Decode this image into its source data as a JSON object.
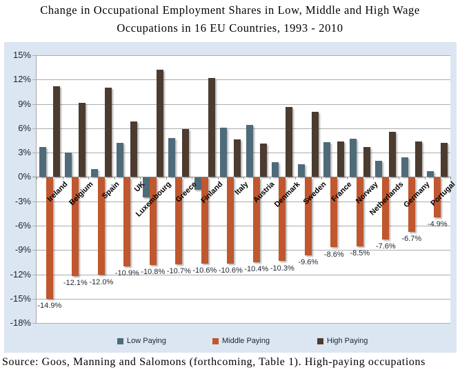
{
  "title_lines": [
    "Change in Occupational Employment Shares in Low, Middle and High Wage",
    "Occupations in 16 EU Countries, 1993 - 2010"
  ],
  "source_text": "Source: Goos, Manning and Salomons (forthcoming, Table 1). High-paying occupations",
  "chart_data": {
    "type": "bar",
    "title": "Change in Occupational Employment Shares in Low, Middle and High Wage Occupations in 16 EU Countries, 1993 - 2010",
    "categories": [
      "Ireland",
      "Belgium",
      "Spain",
      "UK",
      "Luxembourg",
      "Greece",
      "Finland",
      "Italy",
      "Austria",
      "Denmark",
      "Sweden",
      "France",
      "Norway",
      "Netherlands",
      "Germany",
      "Portugal"
    ],
    "series": [
      {
        "name": "Low Paying",
        "color": "#4E6B7A",
        "values": [
          3.7,
          3.0,
          1.0,
          4.2,
          -2.4,
          4.8,
          -1.5,
          6.1,
          6.4,
          1.8,
          1.6,
          4.3,
          4.7,
          2.0,
          2.4,
          0.7
        ]
      },
      {
        "name": "Middle Paying",
        "color": "#C0572E",
        "values": [
          -14.9,
          -12.1,
          -12.0,
          -10.9,
          -10.8,
          -10.7,
          -10.6,
          -10.6,
          -10.4,
          -10.3,
          -9.6,
          -8.6,
          -8.5,
          -7.6,
          -6.7,
          -4.9
        ]
      },
      {
        "name": "High Paying",
        "color": "#4C3B2F",
        "values": [
          11.2,
          9.1,
          11.0,
          6.8,
          13.2,
          5.9,
          12.2,
          4.6,
          4.1,
          8.6,
          8.0,
          4.4,
          3.7,
          5.6,
          4.4,
          4.2
        ]
      }
    ],
    "data_labels": {
      "series": "Middle Paying",
      "labels": [
        "-14.9%",
        "-12.1%",
        "-12.0%",
        "-10.9%",
        "-10.8%",
        "-10.7%",
        "-10.6%",
        "-10.6%",
        "-10.4%",
        "-10.3%",
        "-9.6%",
        "-8.6%",
        "-8.5%",
        "-7.6%",
        "-6.7%",
        "-4.9%"
      ]
    },
    "y_ticks": [
      "15%",
      "12%",
      "9%",
      "6%",
      "3%",
      "0%",
      "-3%",
      "-6%",
      "-9%",
      "-12%",
      "-15%",
      "-18%"
    ],
    "ylim": [
      -18,
      15
    ],
    "xlabel": "",
    "ylabel": "",
    "grid": true,
    "legend_position": "bottom",
    "colors": {
      "chart_bg": "#DCE6F2",
      "plot_bg": "#FFFFFF",
      "gridline": "#ACACAC",
      "axis_text": "#1b2330",
      "category_text": "#000000"
    }
  }
}
